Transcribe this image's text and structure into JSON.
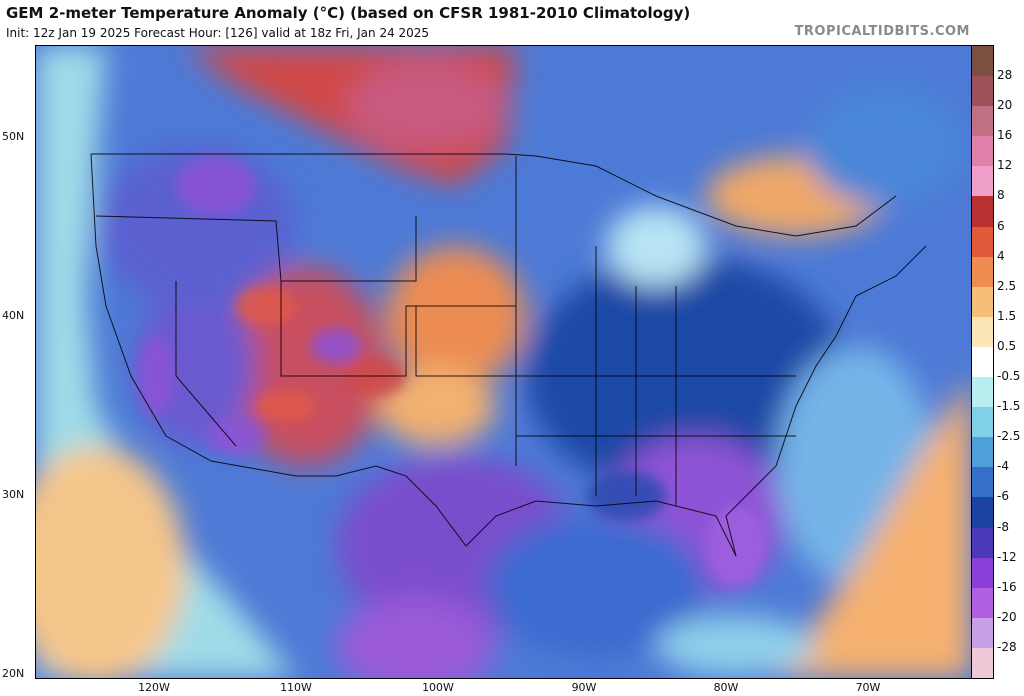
{
  "header": {
    "title": "GEM 2-meter Temperature Anomaly (°C) (based on CFSR 1981-2010 Climatology)",
    "subtitle": "Init: 12z Jan 19 2025   Forecast Hour: [126]   valid at 18z Fri, Jan 24 2025",
    "site": "TROPICALTIDBITS.COM"
  },
  "axes": {
    "lat_labels": [
      "50N",
      "40N",
      "30N",
      "20N"
    ],
    "lon_labels": [
      "120W",
      "110W",
      "100W",
      "90W",
      "80W",
      "70W"
    ]
  },
  "colorbar": {
    "labels": [
      "28",
      "20",
      "16",
      "12",
      "8",
      "6",
      "4",
      "2.5",
      "1.5",
      "0.5",
      "-0.5",
      "-1.5",
      "-2.5",
      "-4",
      "-6",
      "-8",
      "-12",
      "-16",
      "-20",
      "-28"
    ],
    "colors": [
      "#7a5040",
      "#a05058",
      "#c07080",
      "#e080a8",
      "#f0a0c8",
      "#b83030",
      "#e05a3a",
      "#f08c50",
      "#f5bf7a",
      "#fbe6b8",
      "#ffffff",
      "#b8eef0",
      "#80d0e8",
      "#4fa0d8",
      "#3570c8",
      "#1c44a0",
      "#4a3ab8",
      "#8a40d8",
      "#b060e0",
      "#c8a0e8",
      "#f0c8d8"
    ]
  },
  "map_colors": {
    "ocean_pacific": "#8fd8e8",
    "mexico_warm": "#f5c68a",
    "atlantic_warm": "#f5b070",
    "gulf": "#3a6ad0",
    "deep_blue": "#1f49a6",
    "purple": "#8e52d6",
    "canada_red": "#d04040",
    "canada_pink": "#c85a80",
    "plains_orange": "#ee8a50",
    "great_lakes_light": "#b8e4f4"
  }
}
